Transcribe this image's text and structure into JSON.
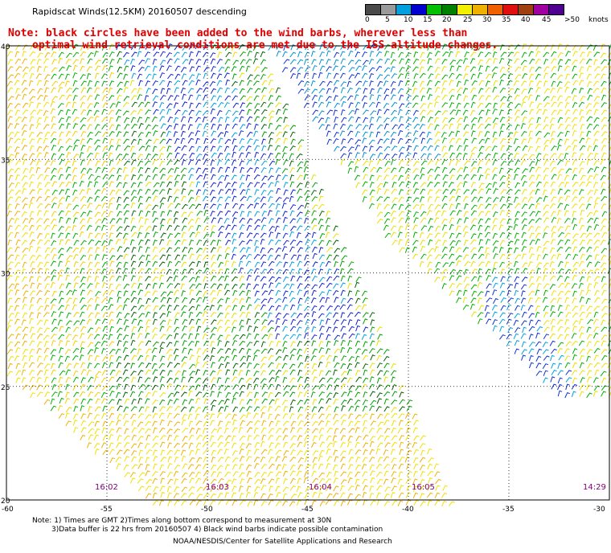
{
  "title": "Rapidscat Winds(12.5KM) 20160507 descending",
  "note_line1": "Note: black circles have been added to the wind barbs, wherever less than",
  "note_line2": "optimal wind retrieval conditions are met due to the ISS altitude changes.",
  "colorscale": {
    "labels": [
      "0",
      "5",
      "10",
      "15",
      "20",
      "25",
      "30",
      "35",
      "40",
      "45",
      ">50"
    ],
    "units": "knots",
    "colors": [
      "#4a4a4a",
      "#9a9a9a",
      "#00a0e0",
      "#0000d0",
      "#00c000",
      "#008000",
      "#f0f000",
      "#f0b000",
      "#f06000",
      "#e01010",
      "#a04010",
      "#a000a0",
      "#500090"
    ]
  },
  "lat_labels": [
    "40",
    "35",
    "30",
    "25",
    "20"
  ],
  "lon_labels": [
    "-60",
    "-55",
    "-50",
    "-45",
    "-40",
    "-35",
    "-30"
  ],
  "time_labels": [
    "16:02",
    "16:03",
    "16:04",
    "16:05",
    "14:29"
  ],
  "footer_line1": "Note: 1) Times are GMT 2)Times along bottom correspond to measurement at 30N",
  "footer_line2": "3)Data buffer is 22 hrs from 20160507 4) Black wind barbs indicate possible contamination",
  "footer_line3": "NOAA/NESDIS/Center for Satellite Applications and Research"
}
